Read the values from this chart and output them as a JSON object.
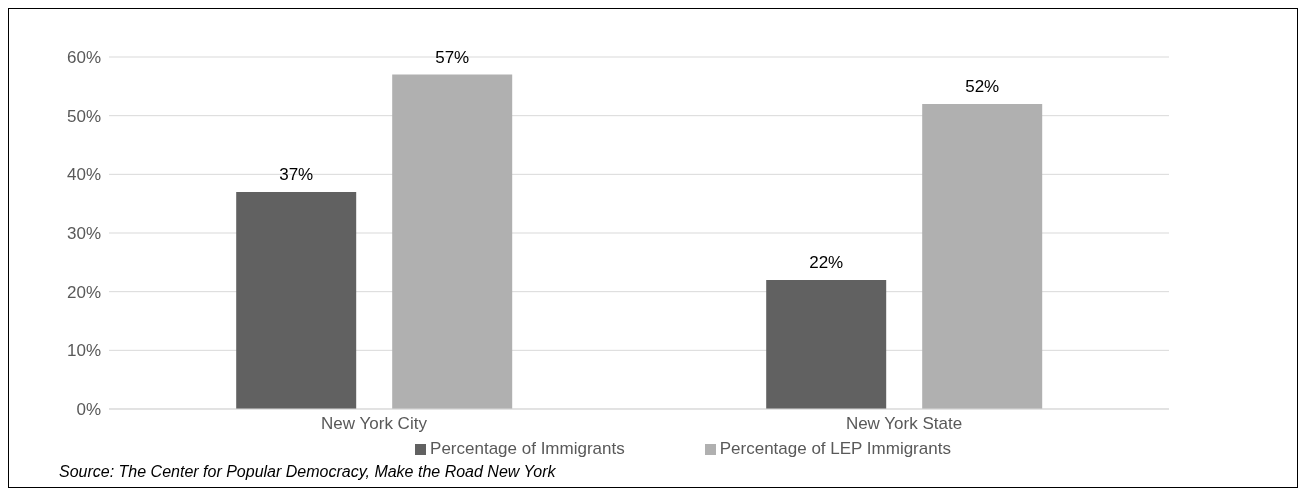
{
  "chart_data": {
    "type": "bar",
    "categories": [
      "New York City",
      "New York State"
    ],
    "series": [
      {
        "name": "Percentage of Immigrants",
        "color": "#616161",
        "values": [
          37,
          22
        ],
        "value_labels": [
          "37%",
          "22%"
        ]
      },
      {
        "name": "Percentage of LEP Immigrants",
        "color": "#b0b0b0",
        "values": [
          57,
          52
        ],
        "value_labels": [
          "57%",
          "52%"
        ]
      }
    ],
    "ylim": [
      0,
      60
    ],
    "yticks": [
      {
        "value": 0,
        "label": "0%"
      },
      {
        "value": 10,
        "label": "10%"
      },
      {
        "value": 20,
        "label": "20%"
      },
      {
        "value": 30,
        "label": "30%"
      },
      {
        "value": 40,
        "label": "40%"
      },
      {
        "value": 50,
        "label": "50%"
      },
      {
        "value": 60,
        "label": "60%"
      }
    ],
    "grid": "y",
    "legend": "bottom",
    "annotations": [
      "Source: The Center for Popular Democracy, Make the Road New York"
    ]
  }
}
